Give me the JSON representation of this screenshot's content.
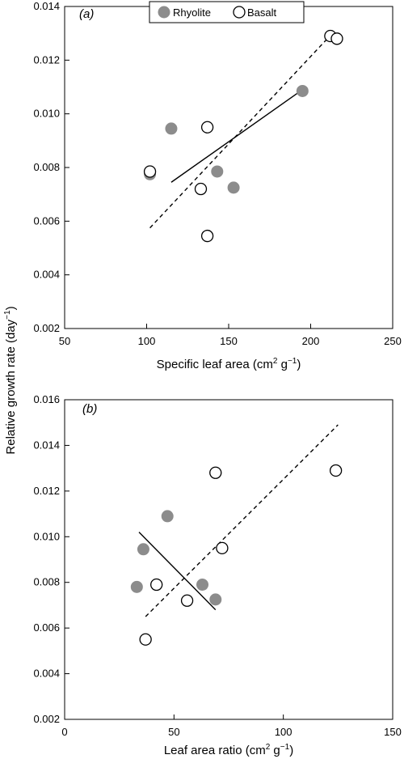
{
  "figure": {
    "shared_ylabel": "Relative growth rate (day",
    "shared_ylabel_sup": "−1",
    "shared_ylabel_close": ")"
  },
  "colors": {
    "rhyolite_fill": "#8c8c8c",
    "basalt_fill": "#ffffff",
    "stroke": "#000000"
  },
  "legend": {
    "items": [
      {
        "label": "Rhyolite",
        "marker": "filled-circle"
      },
      {
        "label": "Basalt",
        "marker": "open-circle"
      }
    ]
  },
  "chart_data": [
    {
      "type": "scatter",
      "panel_label": "(a)",
      "xlabel": "Specific leaf area (cm",
      "xlabel_sup1": "2",
      "xlabel_mid": " g",
      "xlabel_sup2": "−1",
      "xlabel_close": ")",
      "xlim": [
        50,
        250
      ],
      "ylim": [
        0.002,
        0.014
      ],
      "xticks": [
        50,
        100,
        150,
        200,
        250
      ],
      "yticks": [
        "0.002",
        "0.004",
        "0.006",
        "0.008",
        "0.010",
        "0.012",
        "0.014"
      ],
      "grid": false,
      "legend_position": "top",
      "series": [
        {
          "name": "Rhyolite",
          "points": [
            {
              "x": 102,
              "y": 0.00775
            },
            {
              "x": 115,
              "y": 0.00945
            },
            {
              "x": 143,
              "y": 0.00785
            },
            {
              "x": 153,
              "y": 0.00725
            },
            {
              "x": 195,
              "y": 0.01085
            }
          ],
          "fit_line": {
            "x": [
              115,
              195
            ],
            "y": [
              0.00745,
              0.0109
            ],
            "style": "solid"
          }
        },
        {
          "name": "Basalt",
          "points": [
            {
              "x": 102,
              "y": 0.00785
            },
            {
              "x": 133,
              "y": 0.0072
            },
            {
              "x": 137,
              "y": 0.0095
            },
            {
              "x": 137,
              "y": 0.00545
            },
            {
              "x": 212,
              "y": 0.0129
            },
            {
              "x": 216,
              "y": 0.0128
            }
          ],
          "fit_line": {
            "x": [
              102,
              214
            ],
            "y": [
              0.00575,
              0.01305
            ],
            "style": "dashed"
          }
        }
      ]
    },
    {
      "type": "scatter",
      "panel_label": "(b)",
      "xlabel": "Leaf area ratio (cm",
      "xlabel_sup1": "2",
      "xlabel_mid": " g",
      "xlabel_sup2": "−1",
      "xlabel_close": ")",
      "xlim": [
        0,
        150
      ],
      "ylim": [
        0.002,
        0.016
      ],
      "xticks": [
        0,
        50,
        100,
        150
      ],
      "yticks": [
        "0.002",
        "0.004",
        "0.006",
        "0.008",
        "0.010",
        "0.012",
        "0.014",
        "0.016"
      ],
      "grid": false,
      "series": [
        {
          "name": "Rhyolite",
          "points": [
            {
              "x": 33,
              "y": 0.0078
            },
            {
              "x": 36,
              "y": 0.00945
            },
            {
              "x": 47,
              "y": 0.0109
            },
            {
              "x": 63,
              "y": 0.0079
            },
            {
              "x": 69,
              "y": 0.00725
            }
          ],
          "fit_line": {
            "x": [
              34,
              69
            ],
            "y": [
              0.0102,
              0.0068
            ],
            "style": "solid"
          }
        },
        {
          "name": "Basalt",
          "points": [
            {
              "x": 37,
              "y": 0.0055
            },
            {
              "x": 42,
              "y": 0.0079
            },
            {
              "x": 56,
              "y": 0.0072
            },
            {
              "x": 69,
              "y": 0.0128
            },
            {
              "x": 72,
              "y": 0.0095
            },
            {
              "x": 124,
              "y": 0.0129
            }
          ],
          "fit_line": {
            "x": [
              37,
              125
            ],
            "y": [
              0.0065,
              0.0149
            ],
            "style": "dashed"
          }
        }
      ]
    }
  ]
}
